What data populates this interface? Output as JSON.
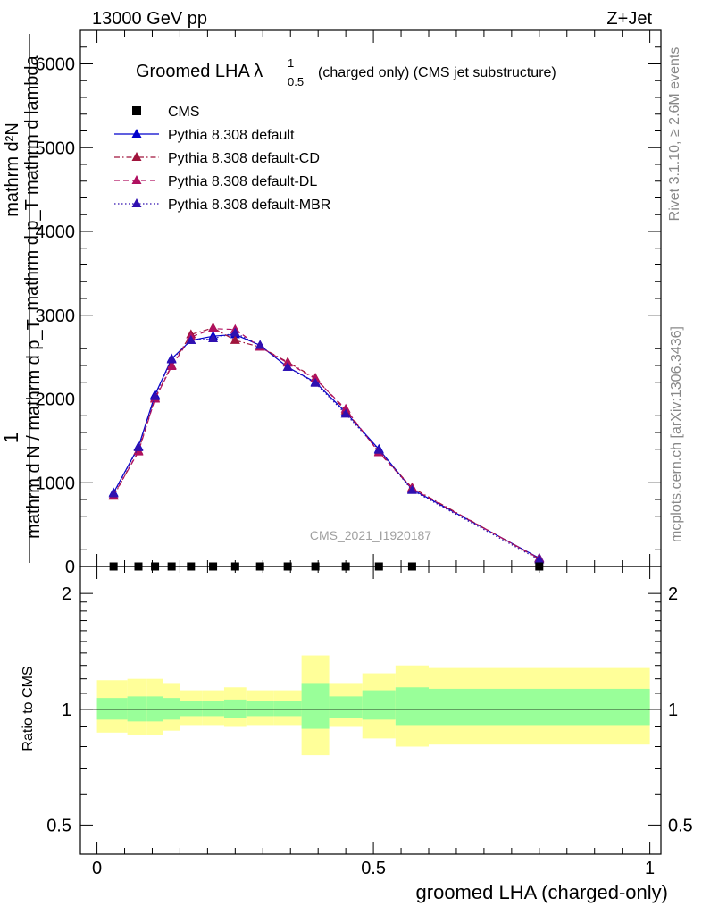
{
  "header": {
    "left": "13000 GeV pp",
    "right": "Z+Jet"
  },
  "chart_title": {
    "main": "Groomed LHA",
    "symbol": "λ",
    "sup": "1",
    "sub": "0.5",
    "suffix": "(charged only) (CMS jet substructure)"
  },
  "watermark": "CMS_2021_I1920187",
  "side_text": {
    "rivet": "Rivet 3.1.10, ≥ 2.6M events",
    "mcplots": "mcplots.cern.ch [arXiv:1306.3436]"
  },
  "y_axis_label": {
    "numerator": "mathrm d²N",
    "numerator_2": "mathrm d p_T mathrm d lambda",
    "one": "1",
    "denominator": "mathrm d N / mathrm d p_T"
  },
  "legend": [
    {
      "label": "CMS",
      "color": "#000000",
      "marker": "square",
      "dash": "none"
    },
    {
      "label": "Pythia 8.308 default",
      "color": "#0000cc",
      "marker": "triangle",
      "dash": "solid"
    },
    {
      "label": "Pythia 8.308 default-CD",
      "color": "#a0143c",
      "marker": "triangle",
      "dash": "dashdot"
    },
    {
      "label": "Pythia 8.308 default-DL",
      "color": "#b01060",
      "marker": "triangle",
      "dash": "dashed"
    },
    {
      "label": "Pythia 8.308 default-MBR",
      "color": "#3010b0",
      "marker": "triangle",
      "dash": "dotted"
    }
  ],
  "ratio_panel": {
    "ylabel": "Ratio to CMS",
    "ticks": [
      "0.5",
      "1",
      "2"
    ]
  },
  "x_axis": {
    "label": "groomed LHA (charged-only)",
    "ticks": [
      "0",
      "0.5",
      "1"
    ]
  },
  "main_y_ticks": [
    "1000",
    "2000",
    "3000",
    "4000",
    "5000",
    "6000",
    "0"
  ],
  "chart_data": {
    "type": "line",
    "xlim": [
      -0.03,
      1.02
    ],
    "ylim": [
      0,
      6400
    ],
    "x": [
      0.03,
      0.075,
      0.105,
      0.135,
      0.17,
      0.21,
      0.25,
      0.295,
      0.345,
      0.395,
      0.45,
      0.51,
      0.57,
      0.8
    ],
    "cms": [
      0,
      0,
      0,
      0,
      0,
      0,
      0,
      0,
      0,
      0,
      0,
      0,
      0,
      0
    ],
    "series": [
      {
        "name": "Pythia 8.308 default",
        "values": [
          880,
          1430,
          2050,
          2480,
          2700,
          2750,
          2770,
          2640,
          2380,
          2200,
          1840,
          1400,
          920,
          100
        ]
      },
      {
        "name": "Pythia 8.308 default-CD",
        "values": [
          840,
          1380,
          2010,
          2400,
          2770,
          2850,
          2700,
          2620,
          2440,
          2250,
          1860,
          1370,
          940,
          90
        ]
      },
      {
        "name": "Pythia 8.308 default-DL",
        "values": [
          850,
          1370,
          2000,
          2390,
          2740,
          2840,
          2830,
          2620,
          2430,
          2240,
          1880,
          1360,
          930,
          95
        ]
      },
      {
        "name": "Pythia 8.308 default-MBR",
        "values": [
          870,
          1420,
          2030,
          2470,
          2700,
          2720,
          2790,
          2640,
          2380,
          2190,
          1820,
          1390,
          910,
          80
        ]
      }
    ],
    "ratio": {
      "ylim": [
        0.42,
        2.35
      ],
      "edges": [
        0.0,
        0.055,
        0.09,
        0.12,
        0.15,
        0.19,
        0.23,
        0.27,
        0.32,
        0.37,
        0.42,
        0.48,
        0.54,
        0.6,
        1.0
      ],
      "green": [
        [
          0.94,
          1.07
        ],
        [
          0.93,
          1.08
        ],
        [
          0.93,
          1.08
        ],
        [
          0.94,
          1.07
        ],
        [
          0.96,
          1.05
        ],
        [
          0.96,
          1.05
        ],
        [
          0.95,
          1.06
        ],
        [
          0.96,
          1.05
        ],
        [
          0.96,
          1.05
        ],
        [
          0.89,
          1.17
        ],
        [
          0.95,
          1.08
        ],
        [
          0.94,
          1.12
        ],
        [
          0.91,
          1.14
        ],
        [
          0.91,
          1.13
        ]
      ],
      "yellow": [
        [
          0.87,
          1.19
        ],
        [
          0.86,
          1.2
        ],
        [
          0.86,
          1.2
        ],
        [
          0.88,
          1.17
        ],
        [
          0.91,
          1.12
        ],
        [
          0.91,
          1.12
        ],
        [
          0.9,
          1.14
        ],
        [
          0.91,
          1.12
        ],
        [
          0.91,
          1.12
        ],
        [
          0.76,
          1.38
        ],
        [
          0.9,
          1.17
        ],
        [
          0.84,
          1.24
        ],
        [
          0.8,
          1.3
        ],
        [
          0.81,
          1.28
        ]
      ]
    }
  }
}
